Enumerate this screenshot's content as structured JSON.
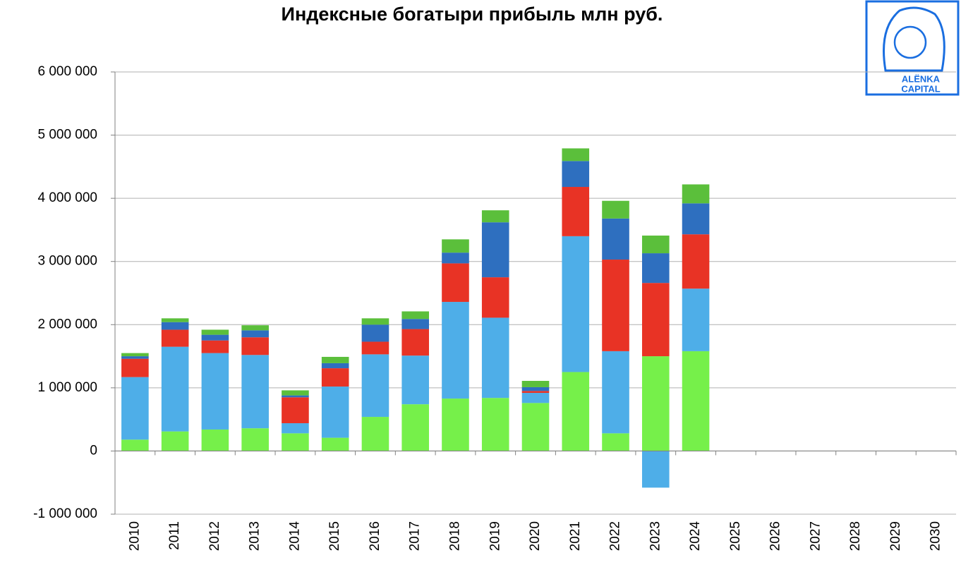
{
  "chart_data": {
    "type": "bar",
    "stacked": true,
    "title": "Индексные богатыри прибыль млн руб.",
    "logo": [
      "ALËNKA",
      "CAPITAL"
    ],
    "categories": [
      "2010",
      "2011",
      "2012",
      "2013",
      "2014",
      "2015",
      "2016",
      "2017",
      "2018",
      "2019",
      "2020",
      "2021",
      "2022",
      "2023",
      "2024",
      "2025",
      "2026",
      "2027",
      "2028",
      "2029",
      "2030"
    ],
    "series": [
      {
        "color": "#76f04a",
        "values": [
          180000,
          310000,
          340000,
          360000,
          280000,
          210000,
          540000,
          740000,
          830000,
          840000,
          760000,
          1250000,
          280000,
          1500000,
          1580000,
          null,
          null,
          null,
          null,
          null,
          null
        ]
      },
      {
        "color": "#4eaee8",
        "values": [
          990000,
          1340000,
          1210000,
          1160000,
          160000,
          810000,
          990000,
          770000,
          1530000,
          1270000,
          160000,
          2150000,
          1300000,
          -580000,
          990000,
          null,
          null,
          null,
          null,
          null,
          null
        ]
      },
      {
        "color": "#e83325",
        "values": [
          290000,
          270000,
          200000,
          280000,
          410000,
          290000,
          200000,
          420000,
          610000,
          640000,
          30000,
          780000,
          1450000,
          1160000,
          860000,
          null,
          null,
          null,
          null,
          null,
          null
        ]
      },
      {
        "color": "#2e6fbf",
        "values": [
          40000,
          120000,
          90000,
          110000,
          30000,
          80000,
          270000,
          160000,
          170000,
          870000,
          60000,
          410000,
          650000,
          470000,
          490000,
          null,
          null,
          null,
          null,
          null,
          null
        ]
      },
      {
        "color": "#5bbf3b",
        "values": [
          50000,
          60000,
          80000,
          80000,
          80000,
          100000,
          100000,
          120000,
          210000,
          190000,
          100000,
          200000,
          280000,
          280000,
          300000,
          null,
          null,
          null,
          null,
          null,
          null
        ]
      }
    ],
    "ylim": [
      -1000000,
      6000000
    ],
    "yticks": [
      {
        "value": -1000000,
        "label": "-1 000 000"
      },
      0,
      {
        "value": 1000000,
        "label": "1 000 000"
      },
      {
        "value": 2000000,
        "label": "2 000 000"
      },
      {
        "value": 3000000,
        "label": "3 000 000"
      },
      {
        "value": 4000000,
        "label": "4 000 000"
      },
      {
        "value": 5000000,
        "label": "5 000 000"
      },
      {
        "value": 6000000,
        "label": "6 000 000"
      }
    ],
    "grid": true
  }
}
